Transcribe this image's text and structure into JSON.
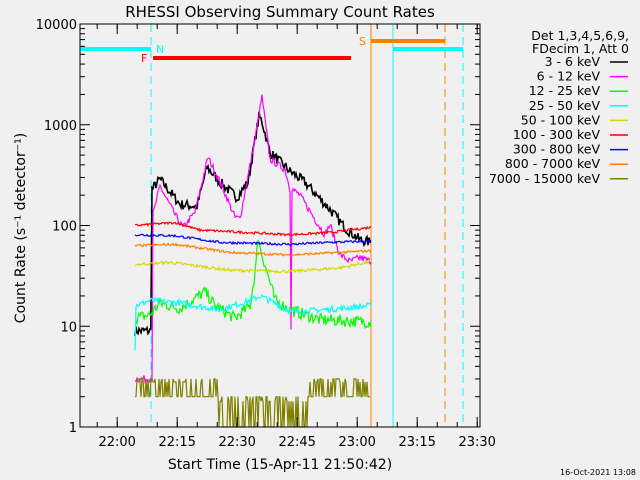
{
  "chart_data": {
    "type": "line",
    "title": "RHESSI Observing Summary Count Rates",
    "xlabel": "Start Time (15-Apr-11 21:50:42)",
    "ylabel": "Count Rate (s⁻¹ detector⁻¹)",
    "x_units": "minutes since 15-Apr-11 21:50:42",
    "xlim": [
      0,
      100
    ],
    "ylim": [
      1,
      10000
    ],
    "yscale": "log",
    "grid": false,
    "x_ticks": [
      {
        "label": "22:00",
        "value": 9.3
      },
      {
        "label": "22:15",
        "value": 24.3
      },
      {
        "label": "22:30",
        "value": 39.3
      },
      {
        "label": "22:45",
        "value": 54.3
      },
      {
        "label": "23:00",
        "value": 69.3
      },
      {
        "label": "23:15",
        "value": 84.3
      },
      {
        "label": "23:30",
        "value": 99.3
      }
    ],
    "y_ticks": [
      {
        "label": "1",
        "value": 1
      },
      {
        "label": "10",
        "value": 10
      },
      {
        "label": "100",
        "value": 100
      },
      {
        "label": "1000",
        "value": 1000
      },
      {
        "label": "10000",
        "value": 10000
      }
    ],
    "legend": {
      "placement": "right",
      "header": [
        "Det 1,3,4,5,6,9,",
        "FDecim 1, Att 0"
      ]
    },
    "series": [
      {
        "name": "3 - 6 keV",
        "color": "#000000",
        "noise": 0.05,
        "points": [
          [
            13.75,
            9
          ],
          [
            17.7,
            9
          ],
          [
            18,
            228
          ],
          [
            20,
            288
          ],
          [
            25,
            162
          ],
          [
            29.25,
            155
          ],
          [
            31.75,
            380
          ],
          [
            35,
            268
          ],
          [
            39.25,
            190
          ],
          [
            42,
            268
          ],
          [
            44.75,
            1210
          ],
          [
            45.5,
            1080
          ],
          [
            47.5,
            530
          ],
          [
            52.5,
            345
          ],
          [
            56.25,
            268
          ],
          [
            62.5,
            144
          ],
          [
            66.25,
            95
          ],
          [
            70,
            72
          ],
          [
            72.75,
            68
          ]
        ]
      },
      {
        "name": "6 - 12 keV",
        "color": "#ff00ff",
        "noise": 0.035,
        "points": [
          [
            13.75,
            3
          ],
          [
            18,
            3
          ],
          [
            18.25,
            128
          ],
          [
            20,
            245
          ],
          [
            23.75,
            128
          ],
          [
            25.75,
            95
          ],
          [
            28.75,
            135
          ],
          [
            32,
            475
          ],
          [
            35.5,
            245
          ],
          [
            38.75,
            120
          ],
          [
            40,
            118
          ],
          [
            43.75,
            720
          ],
          [
            45.5,
            1900
          ],
          [
            47.5,
            455
          ],
          [
            51.25,
            360
          ],
          [
            52.5,
            230
          ],
          [
            52.75,
            10
          ],
          [
            53,
            230
          ],
          [
            55,
            200
          ],
          [
            58.75,
            115
          ],
          [
            61.25,
            81
          ],
          [
            62.5,
            102
          ],
          [
            65,
            51
          ],
          [
            67.5,
            44
          ],
          [
            70,
            48
          ],
          [
            72.75,
            44
          ]
        ]
      },
      {
        "name": "12 - 25 keV",
        "color": "#00ff00",
        "noise": 0.06,
        "points": [
          [
            13.75,
            12
          ],
          [
            17.5,
            13
          ],
          [
            20,
            17
          ],
          [
            25,
            15
          ],
          [
            31.25,
            22
          ],
          [
            33.75,
            16
          ],
          [
            38.75,
            12
          ],
          [
            42.5,
            16
          ],
          [
            44,
            40
          ],
          [
            44.5,
            80
          ],
          [
            45,
            60
          ],
          [
            46.25,
            41
          ],
          [
            48.75,
            18
          ],
          [
            52.5,
            14.6
          ],
          [
            60,
            11.6
          ],
          [
            72.75,
            11
          ]
        ]
      },
      {
        "name": "25 - 50 keV",
        "color": "#00ffff",
        "noise": 0.03,
        "points": [
          [
            13.75,
            6
          ],
          [
            14,
            16
          ],
          [
            17.5,
            18
          ],
          [
            25,
            17
          ],
          [
            35,
            14.6
          ],
          [
            42.5,
            18
          ],
          [
            45,
            20
          ],
          [
            50,
            16
          ],
          [
            52.75,
            14
          ],
          [
            55,
            14
          ],
          [
            65,
            15
          ],
          [
            72.75,
            16
          ]
        ]
      },
      {
        "name": "50 - 100 keV",
        "color": "#d8d800",
        "noise": 0.015,
        "points": [
          [
            13.75,
            41
          ],
          [
            22.5,
            43
          ],
          [
            37.5,
            36
          ],
          [
            52.5,
            35
          ],
          [
            65,
            38
          ],
          [
            72.75,
            44
          ]
        ]
      },
      {
        "name": "100 - 300 keV",
        "color": "#ff0000",
        "noise": 0.012,
        "points": [
          [
            13.75,
            100
          ],
          [
            23.75,
            107
          ],
          [
            30,
            90
          ],
          [
            52.5,
            81
          ],
          [
            62.5,
            85
          ],
          [
            72.75,
            96
          ]
        ]
      },
      {
        "name": "300 - 800 keV",
        "color": "#0000ff",
        "noise": 0.012,
        "points": [
          [
            13.75,
            81
          ],
          [
            23.75,
            79
          ],
          [
            35,
            68
          ],
          [
            52.5,
            65
          ],
          [
            62.5,
            68
          ],
          [
            72.75,
            70
          ]
        ]
      },
      {
        "name": "800 - 7000 keV",
        "color": "#ff8000",
        "noise": 0.012,
        "points": [
          [
            13.75,
            63
          ],
          [
            23.75,
            65
          ],
          [
            37.5,
            54
          ],
          [
            52.5,
            51
          ],
          [
            72.75,
            56
          ]
        ]
      },
      {
        "name": "7000 - 15000 keV",
        "color": "#808000",
        "noise": 0,
        "steps": [
          [
            13.75,
            2,
            3
          ],
          [
            34.5,
            1,
            2
          ],
          [
            57,
            2,
            3
          ],
          [
            72.75,
            2,
            3
          ]
        ]
      }
    ],
    "observing_flags": [
      {
        "label": "N",
        "color": "#00ffff",
        "spans": [
          [
            0,
            17.75
          ],
          [
            78.25,
            95.75
          ]
        ]
      },
      {
        "label": "F",
        "color": "#ff0000",
        "spans": [
          [
            18.25,
            67.75
          ]
        ]
      },
      {
        "label": "S",
        "color": "#ff8000",
        "spans": [
          [
            72.75,
            91.25
          ]
        ]
      }
    ],
    "vertical_markers": [
      {
        "time": 0,
        "color": "#00ffff",
        "style": "solid"
      },
      {
        "time": 17.75,
        "color": "#00ffff",
        "style": "dashed"
      },
      {
        "time": 72.75,
        "color": "#ff8000",
        "style": "solid"
      },
      {
        "time": 78.25,
        "color": "#00ffff",
        "style": "solid"
      },
      {
        "time": 91.25,
        "color": "#ff8000",
        "style": "dashed"
      },
      {
        "time": 95.75,
        "color": "#00ffff",
        "style": "dashed"
      }
    ]
  },
  "footer": {
    "timestamp": "16-Oct-2021 13:08"
  }
}
